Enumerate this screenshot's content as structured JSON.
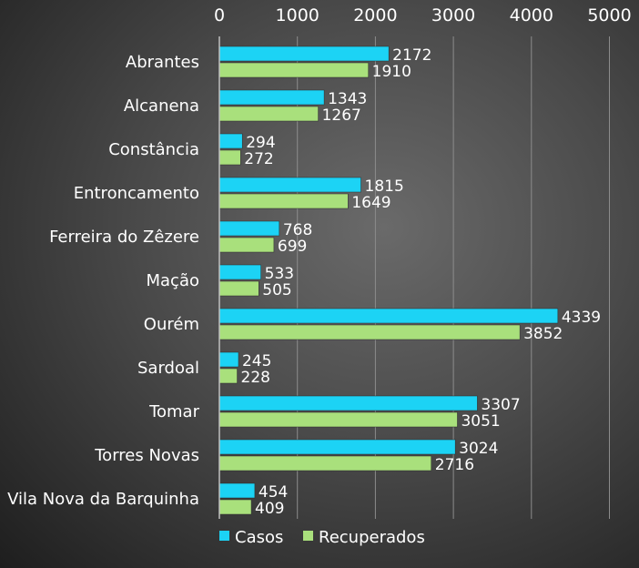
{
  "chart_data": {
    "type": "bar",
    "orientation": "horizontal",
    "categories": [
      "Abrantes",
      "Alcanena",
      "Constância",
      "Entroncamento",
      "Ferreira do Zêzere",
      "Mação",
      "Ourém",
      "Sardoal",
      "Tomar",
      "Torres Novas",
      "Vila Nova da Barquinha"
    ],
    "series": [
      {
        "name": "Casos",
        "color": "#1cd3f5",
        "values": [
          2172,
          1343,
          294,
          1815,
          768,
          533,
          4339,
          245,
          3307,
          3024,
          454
        ]
      },
      {
        "name": "Recuperados",
        "color": "#a9e07c",
        "values": [
          1910,
          1267,
          272,
          1649,
          699,
          505,
          3852,
          228,
          3051,
          2716,
          409
        ]
      }
    ],
    "xlim": [
      0,
      5000
    ],
    "xticks": [
      0,
      1000,
      2000,
      3000,
      4000,
      5000
    ],
    "grid": true,
    "axis_position": "top",
    "legend_position": "bottom-center"
  }
}
